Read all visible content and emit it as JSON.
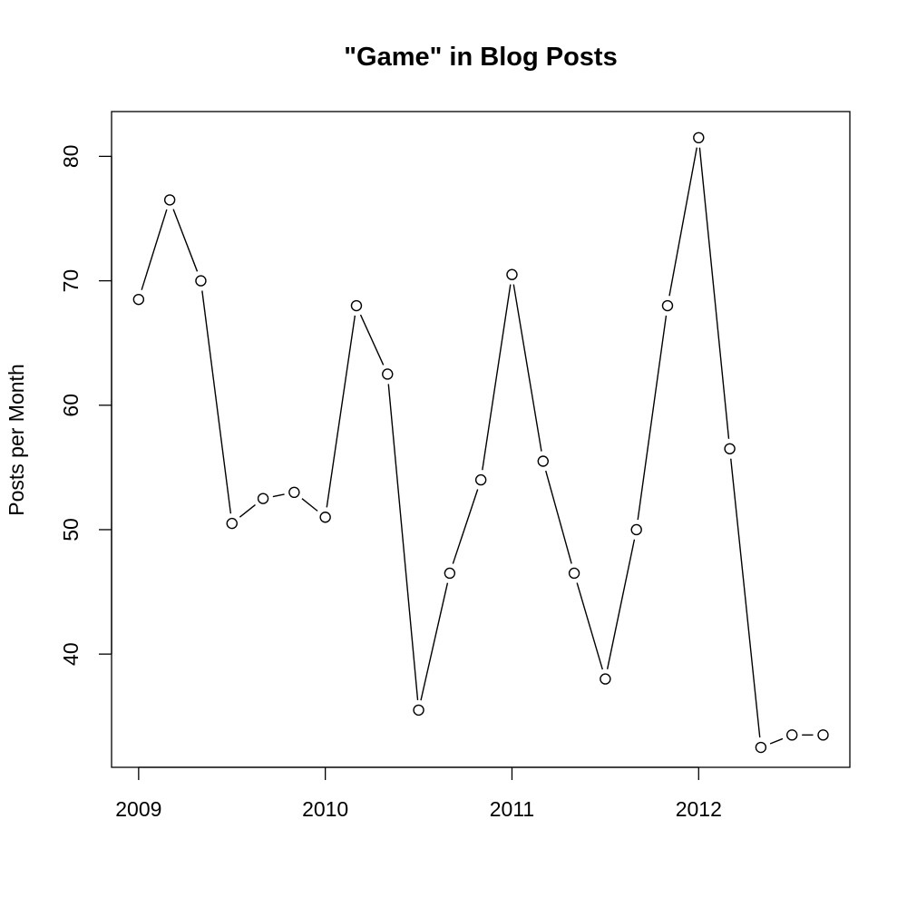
{
  "chart_data": {
    "type": "line",
    "title": "\"Game\" in Blog Posts",
    "xlabel": "",
    "ylabel": "Posts per Month",
    "x": [
      2009.0,
      2009.1667,
      2009.3333,
      2009.5,
      2009.6667,
      2009.8333,
      2010.0,
      2010.1667,
      2010.3333,
      2010.5,
      2010.6667,
      2010.8333,
      2011.0,
      2011.1667,
      2011.3333,
      2011.5,
      2011.6667,
      2011.8333,
      2012.0,
      2012.1667,
      2012.3333,
      2012.5,
      2012.6667
    ],
    "series": [
      {
        "values": [
          68.5,
          76.5,
          70,
          50.5,
          52.5,
          53,
          51,
          68,
          62.5,
          35.5,
          46.5,
          54,
          70.5,
          55.5,
          46.5,
          38,
          50,
          68,
          81.5,
          56.5,
          32.5,
          33.5,
          33.5
        ]
      }
    ],
    "xticks": [
      2009,
      2010,
      2011,
      2012
    ],
    "xtick_labels": [
      "2009",
      "2010",
      "2011",
      "2012"
    ],
    "yticks": [
      40,
      50,
      60,
      70,
      80
    ],
    "ytick_labels": [
      "40",
      "50",
      "60",
      "70",
      "80"
    ],
    "xlim": [
      2008.855,
      2012.81
    ],
    "ylim": [
      30.9,
      83.6
    ],
    "markers": "open-circle",
    "grid": false,
    "line_color": "#000000"
  }
}
